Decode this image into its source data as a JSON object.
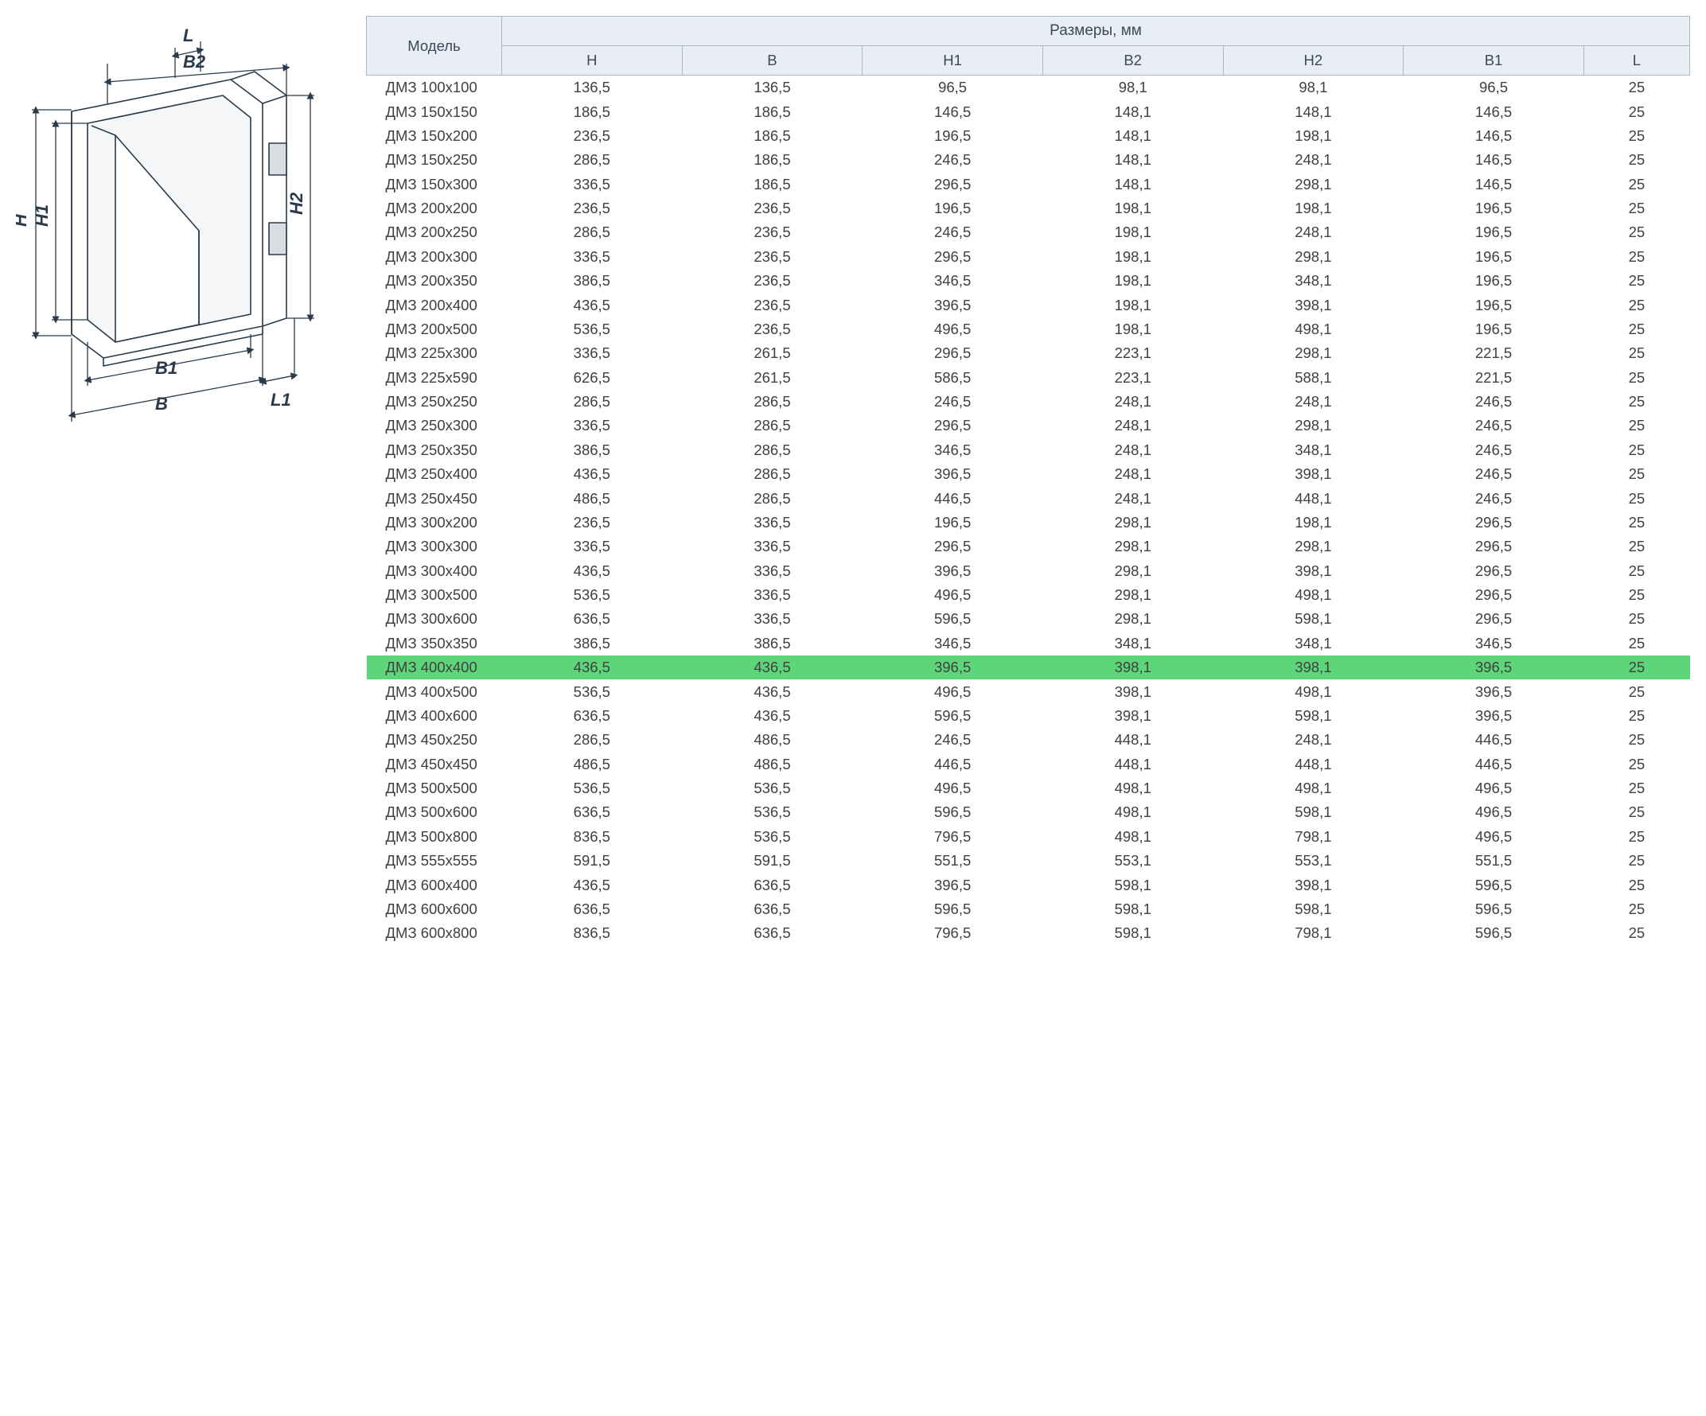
{
  "diagram": {
    "labels": {
      "L": "L",
      "B2": "B2",
      "H": "H",
      "H1": "H1",
      "H2": "H2",
      "B1": "B1",
      "B": "B",
      "L1": "L1"
    },
    "stroke_color": "#2a3a4a",
    "dim_color": "#2a3a4a",
    "fill_light": "#ffffff",
    "fill_shade": "#d8dde2",
    "font_size_pt": 20
  },
  "table": {
    "header": {
      "model": "Модель",
      "group": "Размеры, мм",
      "cols": [
        "H",
        "B",
        "H1",
        "B2",
        "H2",
        "B1",
        "L"
      ]
    },
    "header_bg": "#e8eef3",
    "header_border": "#a9b8c6",
    "highlight_bg": "#5cd678",
    "text_color": "#404040",
    "font_size_pt": 14,
    "highlight_index": 24,
    "rows": [
      {
        "model": "ДМЗ 100х100",
        "v": [
          "136,5",
          "136,5",
          "96,5",
          "98,1",
          "98,1",
          "96,5",
          "25"
        ]
      },
      {
        "model": "ДМЗ 150х150",
        "v": [
          "186,5",
          "186,5",
          "146,5",
          "148,1",
          "148,1",
          "146,5",
          "25"
        ]
      },
      {
        "model": "ДМЗ 150х200",
        "v": [
          "236,5",
          "186,5",
          "196,5",
          "148,1",
          "198,1",
          "146,5",
          "25"
        ]
      },
      {
        "model": "ДМЗ 150х250",
        "v": [
          "286,5",
          "186,5",
          "246,5",
          "148,1",
          "248,1",
          "146,5",
          "25"
        ]
      },
      {
        "model": "ДМЗ 150х300",
        "v": [
          "336,5",
          "186,5",
          "296,5",
          "148,1",
          "298,1",
          "146,5",
          "25"
        ]
      },
      {
        "model": "ДМЗ 200х200",
        "v": [
          "236,5",
          "236,5",
          "196,5",
          "198,1",
          "198,1",
          "196,5",
          "25"
        ]
      },
      {
        "model": "ДМЗ 200х250",
        "v": [
          "286,5",
          "236,5",
          "246,5",
          "198,1",
          "248,1",
          "196,5",
          "25"
        ]
      },
      {
        "model": "ДМЗ 200х300",
        "v": [
          "336,5",
          "236,5",
          "296,5",
          "198,1",
          "298,1",
          "196,5",
          "25"
        ]
      },
      {
        "model": "ДМЗ 200х350",
        "v": [
          "386,5",
          "236,5",
          "346,5",
          "198,1",
          "348,1",
          "196,5",
          "25"
        ]
      },
      {
        "model": "ДМЗ 200х400",
        "v": [
          "436,5",
          "236,5",
          "396,5",
          "198,1",
          "398,1",
          "196,5",
          "25"
        ]
      },
      {
        "model": "ДМЗ 200х500",
        "v": [
          "536,5",
          "236,5",
          "496,5",
          "198,1",
          "498,1",
          "196,5",
          "25"
        ]
      },
      {
        "model": "ДМЗ 225х300",
        "v": [
          "336,5",
          "261,5",
          "296,5",
          "223,1",
          "298,1",
          "221,5",
          "25"
        ]
      },
      {
        "model": "ДМЗ 225х590",
        "v": [
          "626,5",
          "261,5",
          "586,5",
          "223,1",
          "588,1",
          "221,5",
          "25"
        ]
      },
      {
        "model": "ДМЗ 250х250",
        "v": [
          "286,5",
          "286,5",
          "246,5",
          "248,1",
          "248,1",
          "246,5",
          "25"
        ]
      },
      {
        "model": "ДМЗ 250х300",
        "v": [
          "336,5",
          "286,5",
          "296,5",
          "248,1",
          "298,1",
          "246,5",
          "25"
        ]
      },
      {
        "model": "ДМЗ 250х350",
        "v": [
          "386,5",
          "286,5",
          "346,5",
          "248,1",
          "348,1",
          "246,5",
          "25"
        ]
      },
      {
        "model": "ДМЗ 250х400",
        "v": [
          "436,5",
          "286,5",
          "396,5",
          "248,1",
          "398,1",
          "246,5",
          "25"
        ]
      },
      {
        "model": "ДМЗ 250х450",
        "v": [
          "486,5",
          "286,5",
          "446,5",
          "248,1",
          "448,1",
          "246,5",
          "25"
        ]
      },
      {
        "model": "ДМЗ 300х200",
        "v": [
          "236,5",
          "336,5",
          "196,5",
          "298,1",
          "198,1",
          "296,5",
          "25"
        ]
      },
      {
        "model": "ДМЗ 300х300",
        "v": [
          "336,5",
          "336,5",
          "296,5",
          "298,1",
          "298,1",
          "296,5",
          "25"
        ]
      },
      {
        "model": "ДМЗ 300х400",
        "v": [
          "436,5",
          "336,5",
          "396,5",
          "298,1",
          "398,1",
          "296,5",
          "25"
        ]
      },
      {
        "model": "ДМЗ 300х500",
        "v": [
          "536,5",
          "336,5",
          "496,5",
          "298,1",
          "498,1",
          "296,5",
          "25"
        ]
      },
      {
        "model": "ДМЗ 300х600",
        "v": [
          "636,5",
          "336,5",
          "596,5",
          "298,1",
          "598,1",
          "296,5",
          "25"
        ]
      },
      {
        "model": "ДМЗ 350х350",
        "v": [
          "386,5",
          "386,5",
          "346,5",
          "348,1",
          "348,1",
          "346,5",
          "25"
        ]
      },
      {
        "model": "ДМЗ 400х400",
        "v": [
          "436,5",
          "436,5",
          "396,5",
          "398,1",
          "398,1",
          "396,5",
          "25"
        ]
      },
      {
        "model": "ДМЗ 400х500",
        "v": [
          "536,5",
          "436,5",
          "496,5",
          "398,1",
          "498,1",
          "396,5",
          "25"
        ]
      },
      {
        "model": "ДМЗ 400х600",
        "v": [
          "636,5",
          "436,5",
          "596,5",
          "398,1",
          "598,1",
          "396,5",
          "25"
        ]
      },
      {
        "model": "ДМЗ 450х250",
        "v": [
          "286,5",
          "486,5",
          "246,5",
          "448,1",
          "248,1",
          "446,5",
          "25"
        ]
      },
      {
        "model": "ДМЗ 450х450",
        "v": [
          "486,5",
          "486,5",
          "446,5",
          "448,1",
          "448,1",
          "446,5",
          "25"
        ]
      },
      {
        "model": "ДМЗ 500х500",
        "v": [
          "536,5",
          "536,5",
          "496,5",
          "498,1",
          "498,1",
          "496,5",
          "25"
        ]
      },
      {
        "model": "ДМЗ 500х600",
        "v": [
          "636,5",
          "536,5",
          "596,5",
          "498,1",
          "598,1",
          "496,5",
          "25"
        ]
      },
      {
        "model": "ДМЗ 500х800",
        "v": [
          "836,5",
          "536,5",
          "796,5",
          "498,1",
          "798,1",
          "496,5",
          "25"
        ]
      },
      {
        "model": "ДМЗ 555х555",
        "v": [
          "591,5",
          "591,5",
          "551,5",
          "553,1",
          "553,1",
          "551,5",
          "25"
        ]
      },
      {
        "model": "ДМЗ 600х400",
        "v": [
          "436,5",
          "636,5",
          "396,5",
          "598,1",
          "398,1",
          "596,5",
          "25"
        ]
      },
      {
        "model": "ДМЗ 600х600",
        "v": [
          "636,5",
          "636,5",
          "596,5",
          "598,1",
          "598,1",
          "596,5",
          "25"
        ]
      },
      {
        "model": "ДМЗ 600х800",
        "v": [
          "836,5",
          "636,5",
          "796,5",
          "598,1",
          "798,1",
          "596,5",
          "25"
        ]
      }
    ]
  }
}
